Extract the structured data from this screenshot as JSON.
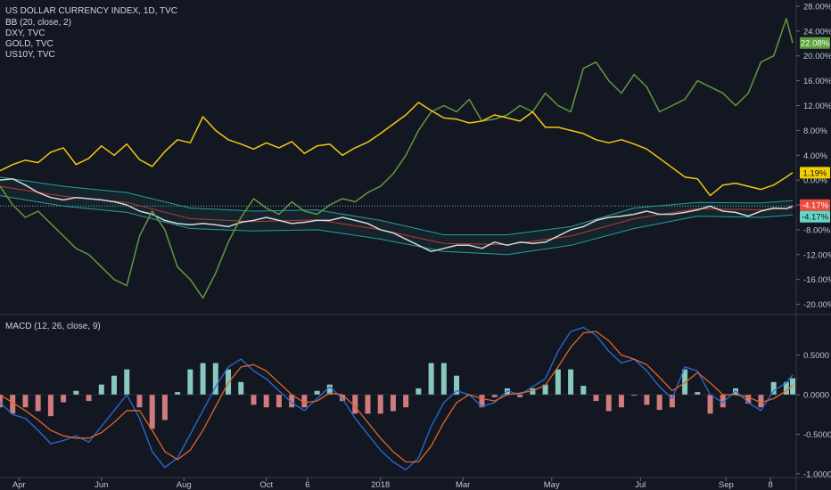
{
  "legend": {
    "title": "US DOLLAR CURRENCY INDEX, 1D, TVC",
    "items": [
      "BB (20, close, 2)",
      "DXY, TVC",
      "GOLD, TVC",
      "US10Y, TVC"
    ]
  },
  "macd_label": "MACD (12, 26, close, 9)",
  "badges": [
    {
      "text": "22.08%",
      "bg": "#5f9e3c",
      "fg": "#ffffff",
      "value": 22.08
    },
    {
      "text": "1.19%",
      "bg": "#f2d000",
      "fg": "#131722",
      "value": 1.19
    },
    {
      "text": "-4.17%",
      "bg": "#ee4c3e",
      "fg": "#ffffff",
      "value": -4.17
    },
    {
      "text": "-4.17%",
      "bg": "#66d4c6",
      "fg": "#131722",
      "value": -4.17
    }
  ],
  "colors": {
    "background": "#131722",
    "gold": "#f2c811",
    "us10y": "#5e9a3f",
    "dxy": "#d7d7d7",
    "bb_band": "#2a9d9a",
    "bb_basis": "#c0392b",
    "macd": "#2a6bd7",
    "signal": "#e0652a",
    "hist_pos": "#9fe8d8",
    "hist_neg": "#f28d8d"
  },
  "chart_data": [
    {
      "type": "line",
      "title": "US DOLLAR CURRENCY INDEX, 1D, TVC",
      "ylabel": "%",
      "ylim": [
        -21.5,
        29
      ],
      "y_ticks": [
        "28.00%",
        "24.00%",
        "20.00%",
        "16.00%",
        "12.00%",
        "8.00%",
        "4.00%",
        "0.00%",
        "-4.00%",
        "-8.00%",
        "-12.00%",
        "-16.00%",
        "-20.00%"
      ],
      "x_ticks": [
        "Apr",
        "Jun",
        "Aug",
        "Oct",
        "6",
        "2018",
        "Mar",
        "May",
        "Jul",
        "Sep",
        "8"
      ],
      "x_tick_pos": [
        3,
        16,
        29,
        42,
        48.5,
        60,
        73,
        87,
        101,
        114.5,
        121.5
      ],
      "series": [
        {
          "name": "GOLD, TVC",
          "color": "#f2c811",
          "x": [
            0,
            2,
            4,
            6,
            8,
            10,
            12,
            14,
            16,
            18,
            20,
            22,
            24,
            26,
            28,
            30,
            32,
            34,
            36,
            38,
            40,
            42,
            44,
            46,
            48,
            50,
            52,
            54,
            56,
            58,
            60,
            62,
            64,
            66,
            68,
            70,
            72,
            74,
            76,
            78,
            80,
            82,
            84,
            86,
            88,
            90,
            92,
            94,
            96,
            98,
            100,
            102,
            104,
            106,
            108,
            110,
            112,
            114,
            116,
            118,
            120,
            122,
            124,
            125
          ],
          "y": [
            1.5,
            2.5,
            3.2,
            2.8,
            4.5,
            5.2,
            2.5,
            3.5,
            5.5,
            4.0,
            5.8,
            3.3,
            2.2,
            4.6,
            6.5,
            6.0,
            10.2,
            8.0,
            6.5,
            5.8,
            5.0,
            6.0,
            5.2,
            6.2,
            4.3,
            5.5,
            5.8,
            4.0,
            5.2,
            6.1,
            7.5,
            9.0,
            10.5,
            12.5,
            11.2,
            10.0,
            9.8,
            9.2,
            9.5,
            10.5,
            10.0,
            9.5,
            11.0,
            8.5,
            8.5,
            8.0,
            7.5,
            6.5,
            6.0,
            6.5,
            5.8,
            5.0,
            3.5,
            2.0,
            0.5,
            0.2,
            -2.5,
            -0.8,
            -0.5,
            -1.0,
            -1.5,
            -0.8,
            0.5,
            1.19
          ]
        },
        {
          "name": "US10Y, TVC",
          "color": "#5e9a3f",
          "x": [
            0,
            2,
            4,
            6,
            8,
            10,
            12,
            14,
            16,
            18,
            20,
            22,
            24,
            26,
            28,
            30,
            32,
            34,
            36,
            38,
            40,
            42,
            44,
            46,
            48,
            50,
            52,
            54,
            56,
            58,
            60,
            62,
            64,
            66,
            68,
            70,
            72,
            74,
            76,
            78,
            80,
            82,
            84,
            86,
            88,
            90,
            92,
            94,
            96,
            98,
            100,
            102,
            104,
            106,
            108,
            110,
            112,
            114,
            116,
            118,
            120,
            122,
            124,
            125
          ],
          "y": [
            -1,
            -4,
            -6,
            -5,
            -7,
            -9,
            -11,
            -12,
            -14,
            -16,
            -17,
            -9,
            -5,
            -8,
            -14,
            -16,
            -19,
            -15,
            -10,
            -6,
            -3,
            -4.5,
            -5.5,
            -3.5,
            -5,
            -5.5,
            -4,
            -3,
            -3.5,
            -2,
            -1,
            1,
            4,
            8,
            11,
            12,
            11,
            13,
            9.5,
            9.8,
            10.5,
            12,
            11,
            14,
            12,
            11,
            18,
            19,
            16,
            14,
            17,
            15,
            11,
            12,
            13,
            16,
            15,
            14,
            12,
            14,
            19,
            20,
            26,
            22.08
          ]
        },
        {
          "name": "DXY, TVC",
          "color": "#d7d7d7",
          "x": [
            0,
            2,
            4,
            6,
            8,
            10,
            12,
            14,
            16,
            18,
            20,
            22,
            24,
            26,
            28,
            30,
            32,
            34,
            36,
            38,
            40,
            42,
            44,
            46,
            48,
            50,
            52,
            54,
            56,
            58,
            60,
            62,
            64,
            66,
            68,
            70,
            72,
            74,
            76,
            78,
            80,
            82,
            84,
            86,
            88,
            90,
            92,
            94,
            96,
            98,
            100,
            102,
            104,
            106,
            108,
            110,
            112,
            114,
            116,
            118,
            120,
            122,
            124,
            125
          ],
          "y": [
            0,
            0.2,
            -0.8,
            -2,
            -2.8,
            -3.2,
            -2.8,
            -3.0,
            -3.2,
            -3.5,
            -4.0,
            -5.0,
            -5.5,
            -6.5,
            -7.0,
            -7.2,
            -7.0,
            -7.2,
            -7.5,
            -6.8,
            -6.5,
            -6.0,
            -6.5,
            -7.0,
            -6.8,
            -6.5,
            -6.5,
            -6.0,
            -6.5,
            -7.0,
            -8.0,
            -8.5,
            -9.5,
            -10.5,
            -11.5,
            -11.0,
            -10.5,
            -10.5,
            -11.0,
            -10.0,
            -10.5,
            -10.0,
            -10.2,
            -10.0,
            -9.0,
            -8.0,
            -7.5,
            -6.5,
            -6.0,
            -5.8,
            -5.5,
            -5.0,
            -5.5,
            -5.5,
            -5.2,
            -4.8,
            -4.2,
            -5.0,
            -5.2,
            -5.8,
            -5.0,
            -4.5,
            -4.6,
            -4.17
          ]
        },
        {
          "name": "BB upper",
          "color": "#2a9d9a",
          "x": [
            0,
            10,
            20,
            30,
            40,
            50,
            60,
            70,
            80,
            90,
            100,
            110,
            120,
            125
          ],
          "y": [
            0.5,
            -1.0,
            -2.0,
            -4.5,
            -5.0,
            -4.8,
            -6.5,
            -8.8,
            -8.8,
            -7.5,
            -4.5,
            -3.6,
            -3.7,
            -3.3
          ]
        },
        {
          "name": "BB basis",
          "color": "#c0392b",
          "x": [
            0,
            10,
            20,
            30,
            40,
            50,
            60,
            70,
            80,
            90,
            100,
            110,
            120,
            125
          ],
          "y": [
            -1.0,
            -2.6,
            -3.6,
            -6.2,
            -6.7,
            -6.4,
            -8.0,
            -10.2,
            -10.4,
            -9.0,
            -6.2,
            -4.6,
            -4.8,
            -4.5
          ]
        },
        {
          "name": "BB lower",
          "color": "#2a9d9a",
          "x": [
            0,
            10,
            20,
            30,
            40,
            50,
            60,
            70,
            80,
            90,
            100,
            110,
            120,
            125
          ],
          "y": [
            -2.5,
            -4.2,
            -5.2,
            -7.8,
            -8.2,
            -8.0,
            -9.5,
            -11.5,
            -12.0,
            -10.5,
            -7.8,
            -5.8,
            -6.0,
            -5.6
          ]
        }
      ]
    },
    {
      "type": "line",
      "title": "MACD (12, 26, close, 9)",
      "ylim": [
        -1.07,
        0.98
      ],
      "y_ticks": [
        "0.5000",
        "0.0000",
        "-0.5000",
        "-1.0000"
      ],
      "series": [
        {
          "name": "MACD",
          "color": "#2a6bd7",
          "x": [
            0,
            2,
            4,
            6,
            8,
            10,
            12,
            14,
            16,
            18,
            20,
            22,
            24,
            26,
            28,
            30,
            32,
            34,
            36,
            38,
            40,
            42,
            44,
            46,
            48,
            50,
            52,
            54,
            56,
            58,
            60,
            62,
            64,
            66,
            68,
            70,
            72,
            74,
            76,
            78,
            80,
            82,
            84,
            86,
            88,
            90,
            92,
            94,
            96,
            98,
            100,
            102,
            104,
            106,
            108,
            110,
            112,
            114,
            116,
            118,
            120,
            122,
            124,
            125
          ],
          "y": [
            -0.1,
            -0.25,
            -0.3,
            -0.45,
            -0.62,
            -0.58,
            -0.52,
            -0.6,
            -0.4,
            -0.2,
            0.0,
            -0.3,
            -0.72,
            -0.92,
            -0.8,
            -0.5,
            -0.2,
            0.1,
            0.35,
            0.45,
            0.3,
            0.2,
            0.05,
            -0.1,
            -0.2,
            -0.05,
            0.1,
            -0.05,
            -0.3,
            -0.5,
            -0.7,
            -0.85,
            -0.95,
            -0.8,
            -0.4,
            -0.1,
            0.05,
            0.0,
            -0.15,
            -0.1,
            0.05,
            0.0,
            0.1,
            0.2,
            0.55,
            0.8,
            0.85,
            0.75,
            0.55,
            0.4,
            0.45,
            0.3,
            0.1,
            -0.05,
            0.35,
            0.3,
            0.0,
            -0.1,
            0.05,
            -0.1,
            -0.2,
            0.05,
            0.15,
            0.25
          ]
        },
        {
          "name": "Signal",
          "color": "#e0652a",
          "x": [
            0,
            2,
            4,
            6,
            8,
            10,
            12,
            14,
            16,
            18,
            20,
            22,
            24,
            26,
            28,
            30,
            32,
            34,
            36,
            38,
            40,
            42,
            44,
            46,
            48,
            50,
            52,
            54,
            56,
            58,
            60,
            62,
            64,
            66,
            68,
            70,
            72,
            74,
            76,
            78,
            80,
            82,
            84,
            86,
            88,
            90,
            92,
            94,
            96,
            98,
            100,
            102,
            104,
            106,
            108,
            110,
            112,
            114,
            116,
            118,
            120,
            122,
            124,
            125
          ],
          "y": [
            0.0,
            -0.1,
            -0.2,
            -0.32,
            -0.45,
            -0.52,
            -0.55,
            -0.55,
            -0.48,
            -0.35,
            -0.2,
            -0.2,
            -0.45,
            -0.72,
            -0.82,
            -0.7,
            -0.45,
            -0.15,
            0.15,
            0.35,
            0.38,
            0.3,
            0.15,
            0.0,
            -0.1,
            -0.08,
            0.02,
            0.0,
            -0.15,
            -0.35,
            -0.55,
            -0.72,
            -0.85,
            -0.85,
            -0.65,
            -0.35,
            -0.1,
            0.0,
            -0.05,
            -0.08,
            0.0,
            0.02,
            0.05,
            0.12,
            0.35,
            0.6,
            0.78,
            0.8,
            0.68,
            0.5,
            0.45,
            0.38,
            0.22,
            0.05,
            0.15,
            0.28,
            0.15,
            0.0,
            0.0,
            -0.03,
            -0.1,
            -0.05,
            0.05,
            0.12
          ]
        }
      ]
    }
  ]
}
